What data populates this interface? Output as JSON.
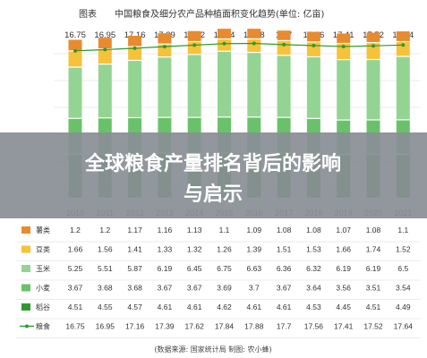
{
  "chart_data": {
    "type": "bar",
    "title_prefix": "图表",
    "title": "中国粮食及细分农产品种植面积变化趋势(单位: 亿亩)",
    "categories": [
      "2010",
      "2011",
      "2012",
      "2013",
      "2014",
      "2015",
      "2016",
      "2017",
      "2018",
      "2019",
      "2020",
      "2021"
    ],
    "series": [
      {
        "name": "稻谷",
        "color": "#2e9a2e",
        "values": [
          4.51,
          4.55,
          4.57,
          4.61,
          4.61,
          4.62,
          4.61,
          4.61,
          4.53,
          4.45,
          4.51,
          4.49
        ]
      },
      {
        "name": "小麦",
        "color": "#69c26a",
        "values": [
          3.67,
          3.68,
          3.68,
          3.67,
          3.67,
          3.69,
          3.7,
          3.67,
          3.64,
          3.56,
          3.51,
          3.54
        ]
      },
      {
        "name": "玉米",
        "color": "#93d493",
        "values": [
          5.25,
          5.51,
          5.87,
          6.19,
          6.45,
          6.75,
          6.63,
          6.36,
          6.32,
          6.19,
          6.19,
          6.5
        ]
      },
      {
        "name": "豆类",
        "color": "#f6c23a",
        "values": [
          1.66,
          1.56,
          1.41,
          1.33,
          1.32,
          1.26,
          1.39,
          1.51,
          1.53,
          1.66,
          1.74,
          1.52
        ]
      },
      {
        "name": "薯类",
        "color": "#e98a2e",
        "values": [
          1.2,
          1.2,
          1.17,
          1.16,
          1.13,
          1.1,
          1.09,
          1.08,
          1.08,
          1.07,
          1.08,
          1.1
        ]
      }
    ],
    "totals": {
      "name": "粮食",
      "color": "#2e9a2e",
      "values": [
        16.75,
        16.95,
        17.16,
        17.39,
        17.62,
        17.84,
        17.88,
        17.7,
        17.56,
        17.41,
        17.52,
        17.64
      ]
    },
    "table_rows_order": [
      "薯类",
      "豆类",
      "玉米",
      "小麦",
      "稻谷",
      "粮食"
    ],
    "table_values": {
      "薯类": [
        "1.2",
        "1.2",
        "1.17",
        "1.16",
        "1.13",
        "1.1",
        "1.09",
        "1.08",
        "1.08",
        "1.07",
        "1.08",
        "1.1"
      ],
      "豆类": [
        "1.66",
        "1.56",
        "1.41",
        "1.33",
        "1.32",
        "1.26",
        "1.39",
        "1.51",
        "1.53",
        "1.66",
        "1.74",
        "1.52"
      ],
      "玉米": [
        "5.25",
        "5.51",
        "5.87",
        "6.19",
        "6.45",
        "6.75",
        "6.63",
        "6.36",
        "6.32",
        "6.19",
        "6.19",
        "6.5"
      ],
      "小麦": [
        "3.67",
        "3.68",
        "3.68",
        "3.67",
        "3.67",
        "3.69",
        "3.7",
        "3.67",
        "3.64",
        "3.56",
        "3.51",
        "3.54"
      ],
      "稻谷": [
        "4.51",
        "4.55",
        "4.57",
        "4.61",
        "4.61",
        "4.62",
        "4.61",
        "4.61",
        "4.53",
        "4.45",
        "4.51",
        "4.49"
      ],
      "粮食": [
        "16.75",
        "16.95",
        "17.16",
        "17.39",
        "17.62",
        "17.84",
        "17.88",
        "17.7",
        "17.56",
        "17.41",
        "17.52",
        "17.64"
      ]
    },
    "legend": "left-of-table",
    "footer": "(数据来源: 国家统计局 制图: 农小蜂)"
  },
  "banner": {
    "line1": "全球粮食产量排名背后的影响",
    "line2": "与启示"
  }
}
